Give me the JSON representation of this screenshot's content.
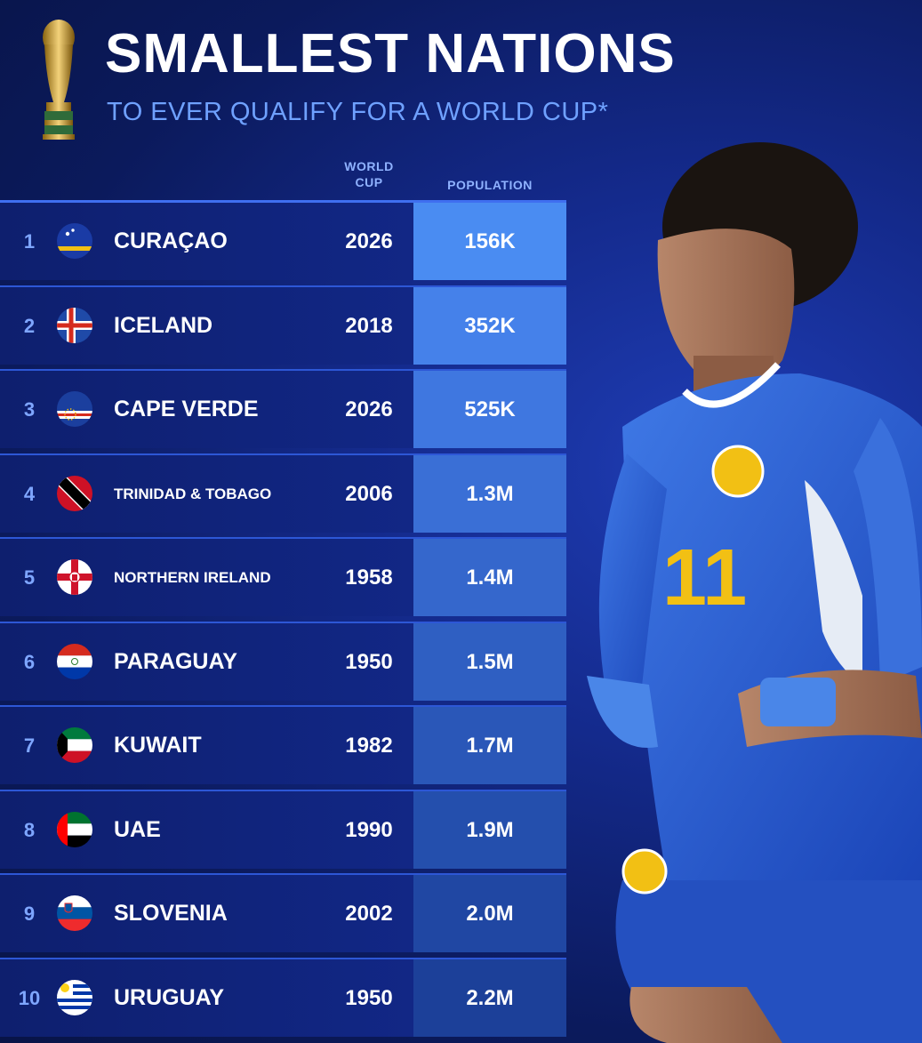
{
  "header": {
    "title": "SMALLEST NATIONS",
    "subtitle": "TO EVER QUALIFY FOR A WORLD CUP*"
  },
  "columns": {
    "world_cup_line1": "WORLD",
    "world_cup_line2": "CUP",
    "population": "POPULATION"
  },
  "colors": {
    "accent": "#6fa1ff",
    "pop_cell_top": "#4a86f0",
    "pop_cell_bottom": "#1f3a9e"
  },
  "rows": [
    {
      "rank": "1",
      "country": "CURAÇAO",
      "year": "2026",
      "population": "156K",
      "flag": "curacao-flag-icon"
    },
    {
      "rank": "2",
      "country": "ICELAND",
      "year": "2018",
      "population": "352K",
      "flag": "iceland-flag-icon"
    },
    {
      "rank": "3",
      "country": "CAPE VERDE",
      "year": "2026",
      "population": "525K",
      "flag": "cape-verde-flag-icon"
    },
    {
      "rank": "4",
      "country": "TRINIDAD & TOBAGO",
      "year": "2006",
      "population": "1.3M",
      "flag": "trinidad-tobago-flag-icon"
    },
    {
      "rank": "5",
      "country": "NORTHERN IRELAND",
      "year": "1958",
      "population": "1.4M",
      "flag": "northern-ireland-flag-icon"
    },
    {
      "rank": "6",
      "country": "PARAGUAY",
      "year": "1950",
      "population": "1.5M",
      "flag": "paraguay-flag-icon"
    },
    {
      "rank": "7",
      "country": "KUWAIT",
      "year": "1982",
      "population": "1.7M",
      "flag": "kuwait-flag-icon"
    },
    {
      "rank": "8",
      "country": "UAE",
      "year": "1990",
      "population": "1.9M",
      "flag": "uae-flag-icon"
    },
    {
      "rank": "9",
      "country": "SLOVENIA",
      "year": "2002",
      "population": "2.0M",
      "flag": "slovenia-flag-icon"
    },
    {
      "rank": "10",
      "country": "URUGUAY",
      "year": "1950",
      "population": "2.2M",
      "flag": "uruguay-flag-icon"
    }
  ],
  "player": {
    "jersey_number": "11"
  }
}
